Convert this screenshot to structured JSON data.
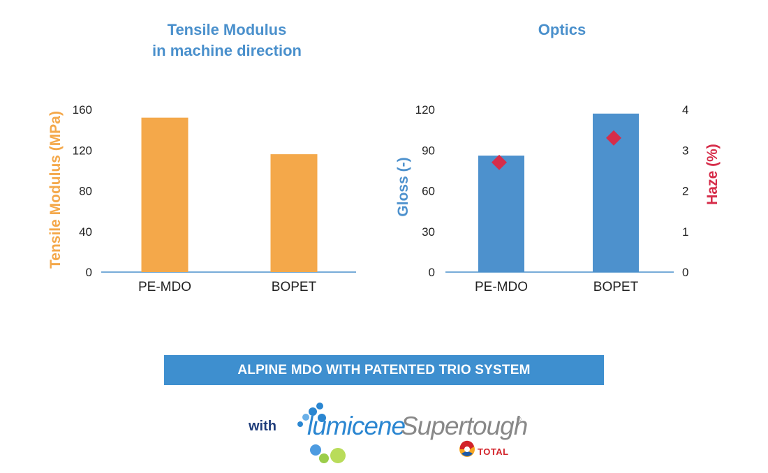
{
  "chart_data": [
    {
      "type": "bar",
      "title": "Tensile Modulus\nin machine direction",
      "categories": [
        "PE-MDO",
        "BOPET"
      ],
      "series": [
        {
          "values": [
            152,
            116
          ]
        }
      ],
      "ylabel": "Tensile Modulus (MPa)",
      "ylim": [
        0,
        160
      ],
      "yticks": [
        0,
        40,
        80,
        120,
        160
      ],
      "grid": false,
      "colors": {
        "bar": "#f4a84a",
        "axis_label": "#f4a84a"
      }
    },
    {
      "type": "bar",
      "title": "Optics",
      "categories": [
        "PE-MDO",
        "BOPET"
      ],
      "series": [
        {
          "values": [
            86,
            117
          ],
          "axis": "left",
          "mark": "bar"
        },
        {
          "values": [
            2.7,
            3.3
          ],
          "axis": "right",
          "mark": "diamond"
        }
      ],
      "ylabel": "Gloss (-)",
      "ylim": [
        0,
        120
      ],
      "yticks": [
        0,
        30,
        60,
        90,
        120
      ],
      "y2label": "Haze (%)",
      "y2lim": [
        0,
        4
      ],
      "y2ticks": [
        0,
        1,
        2,
        3,
        4
      ],
      "grid": false,
      "colors": {
        "bar": "#4d91cd",
        "marker": "#d62d4a",
        "axis_label": "#4d91cd",
        "axis2_label": "#d62d4a"
      }
    }
  ],
  "banner": {
    "text": "ALPINE MDO WITH PATENTED TRIO SYSTEM"
  },
  "brand": {
    "with": "with",
    "word1": "lumicene",
    "word2": "Supertough",
    "reg": "®",
    "company": "TOTAL",
    "bubbles_icon": "molecule-bubbles-icon",
    "company_icon": "total-swirl-icon"
  }
}
